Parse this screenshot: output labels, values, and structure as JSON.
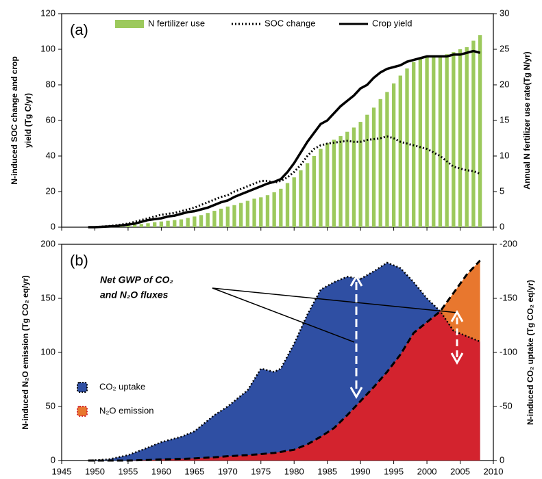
{
  "chart_data": [
    {
      "type": "combo",
      "label": "(a)",
      "y_label": [
        "N-induced SOC change and crop",
        "yield (Tg C/yr)"
      ],
      "y2_label": "Annual N fertilizer use rate(Tg N/yr)",
      "x": [
        1949,
        1950,
        1951,
        1952,
        1953,
        1954,
        1955,
        1956,
        1957,
        1958,
        1959,
        1960,
        1961,
        1962,
        1963,
        1964,
        1965,
        1966,
        1967,
        1968,
        1969,
        1970,
        1971,
        1972,
        1973,
        1974,
        1975,
        1976,
        1977,
        1978,
        1979,
        1980,
        1981,
        1982,
        1983,
        1984,
        1985,
        1986,
        1987,
        1988,
        1989,
        1990,
        1991,
        1992,
        1993,
        1994,
        1995,
        1996,
        1997,
        1998,
        1999,
        2000,
        2001,
        2002,
        2003,
        2004,
        2005,
        2006,
        2007,
        2008
      ],
      "xlim": [
        1945,
        2010
      ],
      "ylim": [
        0,
        120
      ],
      "yticks": [
        0,
        20,
        40,
        60,
        80,
        100,
        120
      ],
      "y2lim": [
        0,
        30
      ],
      "y2ticks": [
        0,
        5,
        10,
        15,
        20,
        25,
        30
      ],
      "series": [
        {
          "name": "N fertilizer use",
          "type": "bar",
          "axis": "y2",
          "color": "#9cc95c",
          "values": [
            0,
            0,
            0.05,
            0.1,
            0.15,
            0.2,
            0.3,
            0.35,
            0.45,
            0.55,
            0.7,
            0.8,
            0.9,
            1.0,
            1.1,
            1.3,
            1.5,
            1.7,
            2.0,
            2.3,
            2.6,
            2.9,
            3.1,
            3.4,
            3.7,
            4.0,
            4.2,
            4.5,
            4.9,
            5.4,
            6.2,
            7.0,
            8.0,
            9.0,
            10.0,
            11.0,
            11.8,
            12.3,
            12.8,
            13.4,
            14.0,
            14.8,
            15.8,
            16.8,
            18.0,
            19.0,
            20.2,
            21.3,
            22.3,
            23.2,
            23.8,
            24.0,
            24.0,
            24.1,
            24.3,
            24.6,
            25.0,
            25.3,
            26.2,
            27.0
          ]
        },
        {
          "name": "SOC change",
          "type": "line",
          "style": "dotted",
          "color": "#000000",
          "values": [
            0,
            0,
            0.3,
            0.6,
            1,
            1.5,
            2,
            3,
            4,
            5,
            6,
            7,
            7.5,
            8,
            9,
            10,
            11,
            12.5,
            14,
            15.5,
            17,
            18,
            20,
            21.5,
            23,
            24.5,
            26,
            26,
            25,
            26,
            28,
            31,
            35,
            40,
            44,
            46,
            47,
            47.5,
            48,
            48.5,
            48,
            48,
            49,
            49.5,
            50,
            51,
            50,
            48,
            47,
            46,
            45,
            44,
            42,
            40,
            37,
            34,
            33,
            32,
            31.5,
            30
          ]
        },
        {
          "name": "Crop yield",
          "type": "line",
          "style": "solid",
          "color": "#000000",
          "values": [
            0,
            0,
            0.2,
            0.4,
            0.6,
            1,
            1.5,
            2,
            3,
            4,
            4.5,
            5,
            6,
            6.5,
            7.5,
            8.5,
            9,
            10,
            11,
            12.5,
            14,
            15,
            17,
            18.5,
            20,
            21.5,
            23,
            24.5,
            25.5,
            27,
            31,
            36,
            42,
            48,
            53,
            58,
            60,
            64,
            68,
            71,
            74,
            78,
            80,
            84,
            87,
            89,
            90,
            91,
            93,
            94,
            95,
            96,
            96,
            96,
            96,
            97,
            97,
            98,
            99,
            98
          ]
        }
      ]
    },
    {
      "type": "area",
      "label": "(b)",
      "y_label": "N-induced N₂O emission (Tg CO₂ eq/yr)",
      "y2_label": "N-induced CO₂ uptake (Tg CO₂ eq/yr)",
      "annotation": [
        "Net GWP of CO₂",
        "and N₂O fluxes"
      ],
      "x": [
        1949,
        1952,
        1955,
        1958,
        1960,
        1963,
        1965,
        1968,
        1970,
        1973,
        1975,
        1977,
        1978,
        1980,
        1982,
        1984,
        1986,
        1988,
        1990,
        1992,
        1994,
        1996,
        1998,
        2000,
        2002,
        2004,
        2006,
        2008
      ],
      "xlim": [
        1945,
        2010
      ],
      "xticks": [
        1945,
        1950,
        1955,
        1960,
        1965,
        1970,
        1975,
        1980,
        1985,
        1990,
        1995,
        2000,
        2005,
        2010
      ],
      "ylim": [
        0,
        200
      ],
      "yticks": [
        0,
        50,
        100,
        150,
        200
      ],
      "y2lim": [
        0,
        -200
      ],
      "y2ticks": [
        0,
        -50,
        -100,
        -150,
        -200
      ],
      "series": [
        {
          "name": "CO₂ uptake",
          "axis": "y2",
          "color": "#2f4fa3",
          "border": "dotted",
          "values": [
            0,
            -1,
            -5,
            -12,
            -17,
            -22,
            -27,
            -42,
            -50,
            -65,
            -85,
            -82,
            -85,
            -108,
            -135,
            -158,
            -165,
            -170,
            -168,
            -175,
            -183,
            -178,
            -165,
            -150,
            -138,
            -120,
            -115,
            -110
          ]
        },
        {
          "name": "N₂O emission",
          "color": "#e8772e",
          "overlap_color": "#d3232e",
          "border": "dashed",
          "values": [
            0,
            0,
            0,
            0.5,
            1,
            1.5,
            2,
            3,
            4,
            5,
            6,
            7,
            8,
            10,
            15,
            22,
            30,
            42,
            55,
            68,
            82,
            98,
            118,
            128,
            138,
            155,
            172,
            185
          ]
        }
      ]
    }
  ]
}
